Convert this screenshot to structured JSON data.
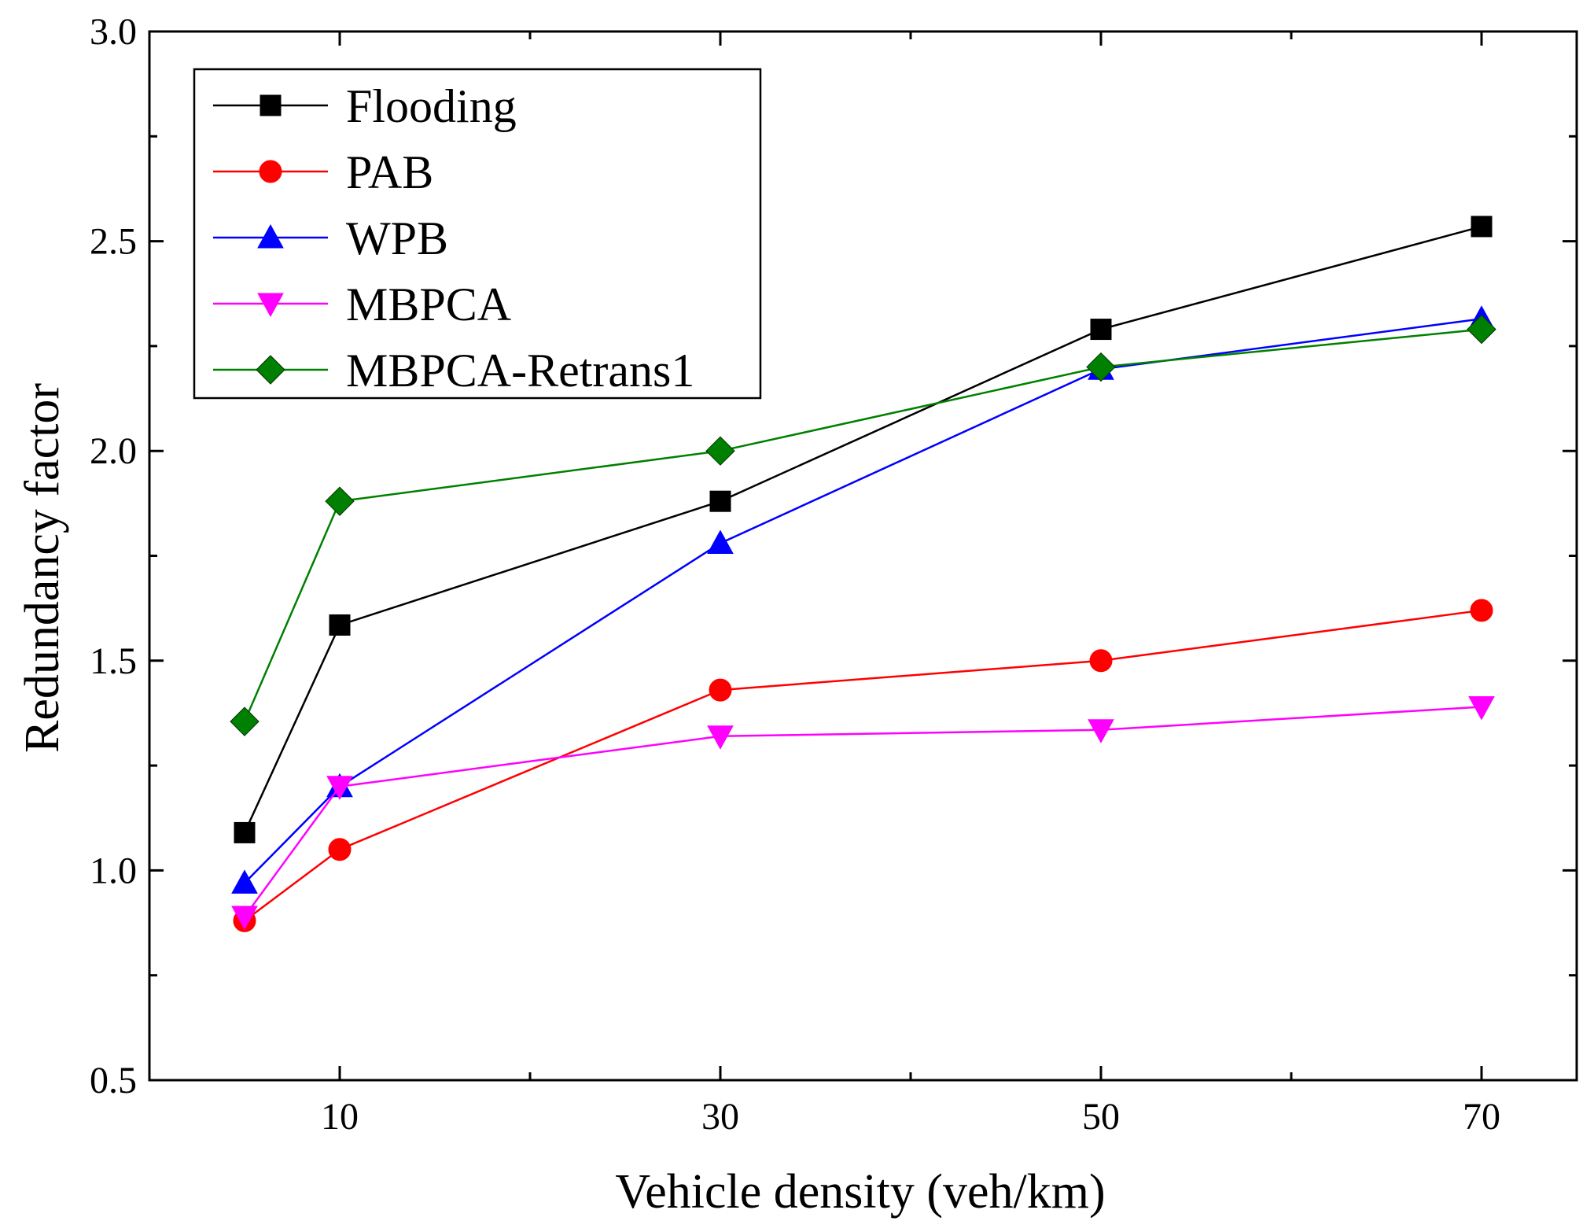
{
  "chart_data": {
    "type": "line",
    "title": "",
    "xlabel": "Vehicle density (veh/km)",
    "ylabel": "Redundancy factor",
    "xlim": [
      0,
      75
    ],
    "ylim": [
      0.5,
      3.0
    ],
    "xticks": [
      10,
      30,
      50,
      70
    ],
    "yticks": [
      0.5,
      1.0,
      1.5,
      2.0,
      2.5,
      3.0
    ],
    "xtick_labels": [
      "10",
      "30",
      "50",
      "70"
    ],
    "ytick_labels": [
      "0.5",
      "1.0",
      "1.5",
      "2.0",
      "2.5",
      "3.0"
    ],
    "grid": false,
    "legend_position": "top-left",
    "x": [
      5,
      10,
      30,
      50,
      70
    ],
    "series": [
      {
        "name": "Flooding",
        "color": "#000000",
        "marker": "square",
        "values": [
          1.09,
          1.585,
          1.88,
          2.29,
          2.535
        ]
      },
      {
        "name": "PAB",
        "color": "#ff0000",
        "marker": "circle",
        "values": [
          0.88,
          1.05,
          1.43,
          1.5,
          1.62
        ]
      },
      {
        "name": "WPB",
        "color": "#0000ff",
        "marker": "triangle-up",
        "values": [
          0.97,
          1.2,
          1.78,
          2.195,
          2.315
        ]
      },
      {
        "name": "MBPCA",
        "color": "#ff00ff",
        "marker": "triangle-down",
        "values": [
          0.89,
          1.2,
          1.32,
          1.335,
          1.39
        ]
      },
      {
        "name": "MBPCA-Retrans1",
        "color": "#008000",
        "marker": "diamond",
        "values": [
          1.355,
          1.88,
          2.0,
          2.2,
          2.29
        ]
      }
    ]
  }
}
